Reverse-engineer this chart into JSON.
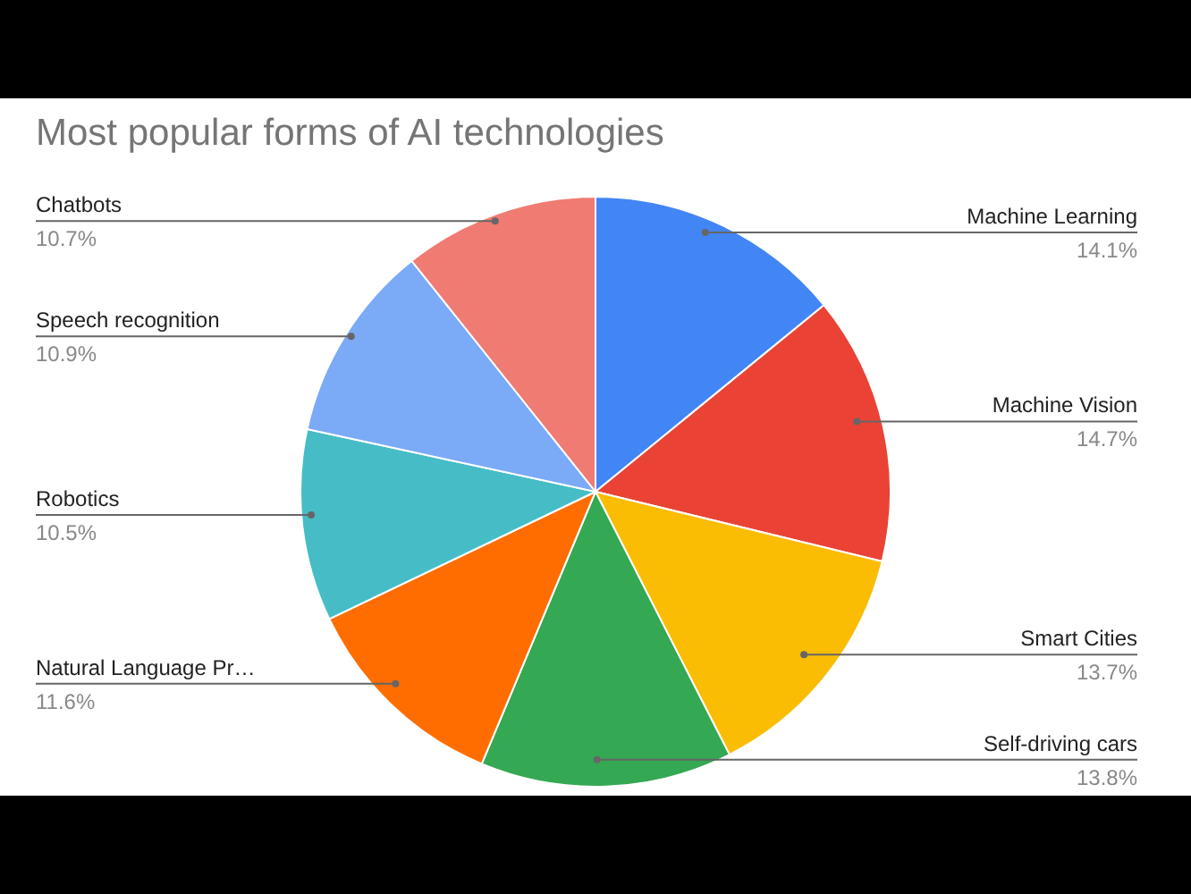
{
  "chart_data": {
    "type": "pie",
    "title": "Most popular forms of AI technologies",
    "categories": [
      "Machine Learning",
      "Machine Vision",
      "Smart Cities",
      "Self-driving cars",
      "Natural Language Pr…",
      "Robotics",
      "Speech recognition",
      "Chatbots"
    ],
    "values": [
      14.1,
      14.7,
      13.7,
      13.8,
      11.6,
      10.5,
      10.9,
      10.7
    ],
    "colors": [
      "#4285f4",
      "#ea4335",
      "#fbbc04",
      "#34a853",
      "#ff6d01",
      "#46bdc6",
      "#7baaf7",
      "#f07b72"
    ],
    "value_labels": [
      "14.1%",
      "14.7%",
      "13.7%",
      "13.8%",
      "11.6%",
      "10.5%",
      "10.9%",
      "10.7%"
    ]
  }
}
